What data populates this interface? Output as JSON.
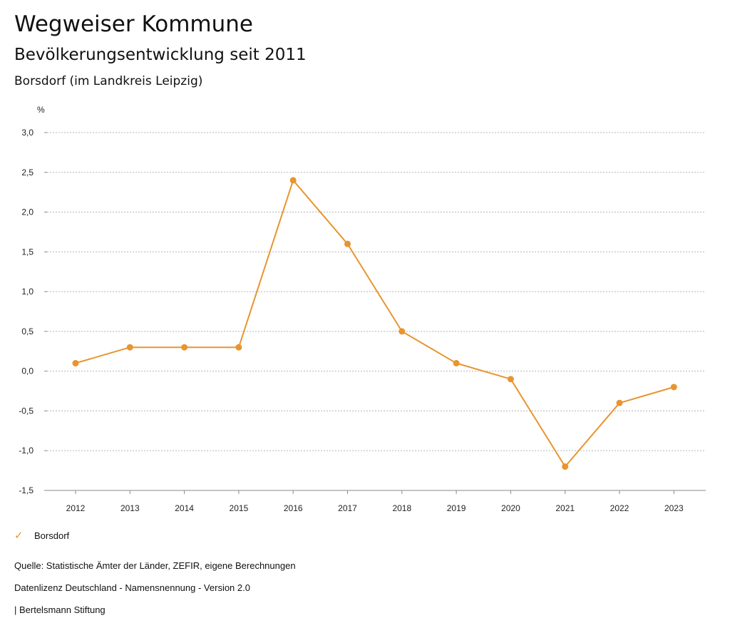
{
  "header": {
    "title": "Wegweiser Kommune",
    "subtitle": "Bevölkerungsentwicklung seit 2011",
    "region": "Borsdorf (im Landkreis Leipzig)"
  },
  "chart_data": {
    "type": "line",
    "title": "Bevölkerungsentwicklung seit 2011",
    "subtitle": "Borsdorf (im Landkreis Leipzig)",
    "ylabel": "%",
    "xlabel": "",
    "x": [
      "2012",
      "2013",
      "2014",
      "2015",
      "2016",
      "2017",
      "2018",
      "2019",
      "2020",
      "2021",
      "2022",
      "2023"
    ],
    "series": [
      {
        "name": "Borsdorf",
        "values": [
          0.1,
          0.3,
          0.3,
          0.3,
          2.4,
          1.6,
          0.5,
          0.1,
          -0.1,
          -1.2,
          -0.4,
          -0.2
        ],
        "color": "#E8952F"
      }
    ],
    "ylim": [
      -1.5,
      3.0
    ],
    "yticks": [
      {
        "value": -1.5,
        "label": "-1,5"
      },
      {
        "value": -1.0,
        "label": "-1,0"
      },
      {
        "value": -0.5,
        "label": "-0,5"
      },
      {
        "value": 0.0,
        "label": "0,0"
      },
      {
        "value": 0.5,
        "label": "0,5"
      },
      {
        "value": 1.0,
        "label": "1,0"
      },
      {
        "value": 1.5,
        "label": "1,5"
      },
      {
        "value": 2.0,
        "label": "2,0"
      },
      {
        "value": 2.5,
        "label": "2,5"
      },
      {
        "value": 3.0,
        "label": "3,0"
      }
    ],
    "grid": true,
    "legend_position": "bottom-left"
  },
  "legend": {
    "check_icon": "✓",
    "label": "Borsdorf"
  },
  "footer": {
    "source": "Quelle: Statistische Ämter der Länder, ZEFIR, eigene Berechnungen",
    "license": "Datenlizenz Deutschland - Namensnennung - Version 2.0",
    "credit": "| Bertelsmann Stiftung"
  }
}
